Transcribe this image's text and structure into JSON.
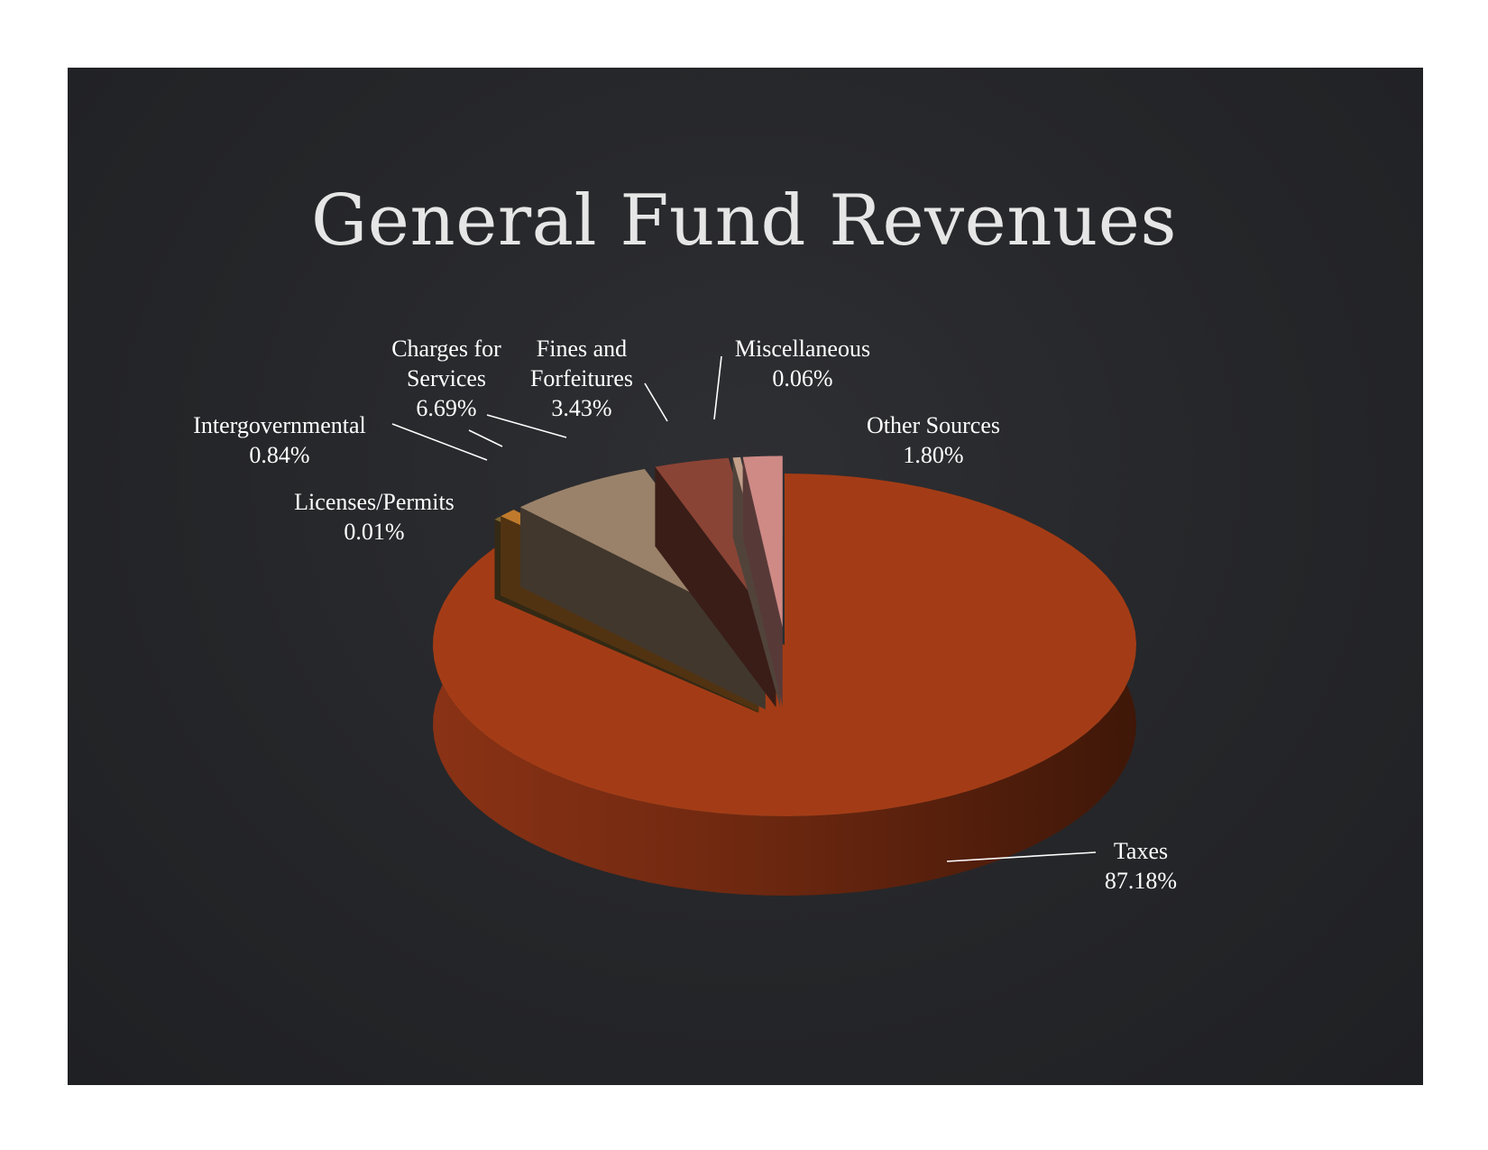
{
  "title": "General Fund Revenues",
  "chart_data": {
    "type": "pie",
    "title": "General Fund Revenues",
    "three_d": true,
    "exploded": true,
    "slices": [
      {
        "name": "Taxes",
        "line1": "Taxes",
        "line2": "",
        "pct_label": "87.18%",
        "value": 87.18,
        "color": "#a33c16"
      },
      {
        "name": "Licenses/Permits",
        "line1": "Licenses/Permits",
        "line2": "",
        "pct_label": "0.01%",
        "value": 0.01,
        "color": "#7a6230"
      },
      {
        "name": "Intergovernmental",
        "line1": "Intergovernmental",
        "line2": "",
        "pct_label": "0.84%",
        "value": 0.84,
        "color": "#c07a2c"
      },
      {
        "name": "Charges for Services",
        "line1": "Charges for",
        "line2": "Services",
        "pct_label": "6.69%",
        "value": 6.69,
        "color": "#9a826a"
      },
      {
        "name": "Fines and Forfeitures",
        "line1": "Fines and",
        "line2": "Forfeitures",
        "pct_label": "3.43%",
        "value": 3.43,
        "color": "#8a4436"
      },
      {
        "name": "Miscellaneous",
        "line1": "Miscellaneous",
        "line2": "",
        "pct_label": "0.06%",
        "value": 0.06,
        "color": "#c2a08a"
      },
      {
        "name": "Other Sources",
        "line1": "Other Sources",
        "line2": "",
        "pct_label": "1.80%",
        "value": 1.8,
        "color": "#cf8a86"
      }
    ]
  }
}
